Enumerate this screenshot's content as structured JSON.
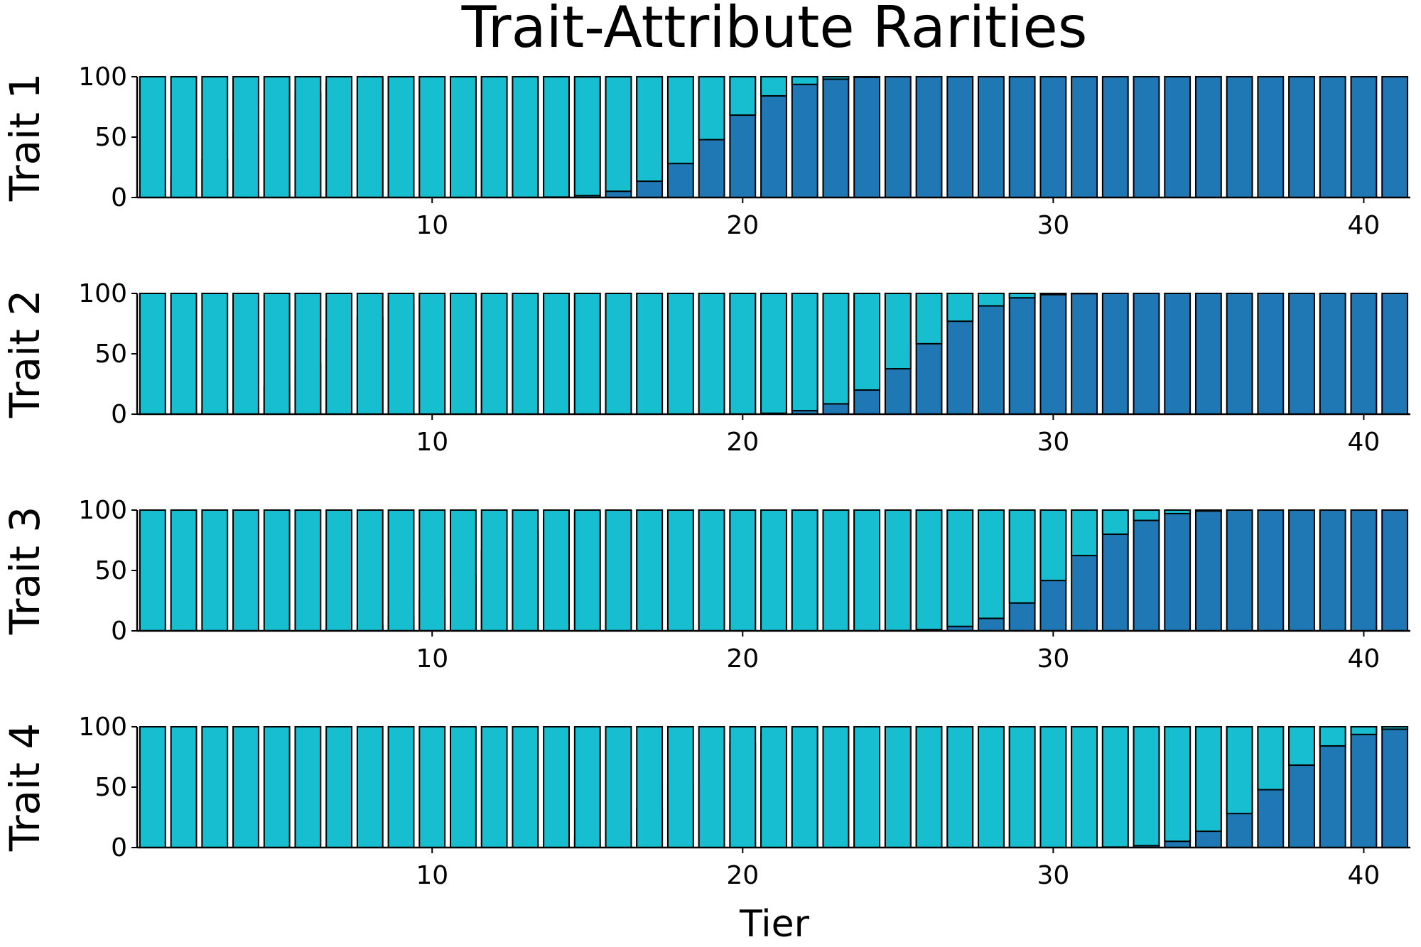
{
  "figure": {
    "title": "Trait-Attribute Rarities",
    "xlabel": "Tier"
  },
  "chart_data": [
    {
      "type": "bar",
      "stacked": true,
      "ylabel": "Trait 1",
      "x_ticks": [
        10,
        20,
        30,
        40
      ],
      "y_ticks": [
        0,
        50,
        100
      ],
      "xlim": [
        0.5,
        41.5
      ],
      "ylim": [
        0,
        100
      ],
      "grid": false,
      "center": 11.5,
      "spread": 1.9
    },
    {
      "type": "bar",
      "stacked": true,
      "ylabel": "Trait 2",
      "x_ticks": [
        10,
        20,
        30,
        40
      ],
      "y_ticks": [
        0,
        50,
        100
      ],
      "xlim": [
        0.5,
        41.5
      ],
      "ylim": [
        0,
        100
      ],
      "grid": false,
      "center": 16.0,
      "spread": 2.4
    },
    {
      "type": "bar",
      "stacked": true,
      "ylabel": "Trait 3",
      "x_ticks": [
        10,
        20,
        30,
        40
      ],
      "y_ticks": [
        0,
        50,
        100
      ],
      "xlim": [
        0.5,
        41.5
      ],
      "ylim": [
        0,
        100
      ],
      "grid": false,
      "center": 20.8,
      "spread": 2.4
    },
    {
      "type": "bar",
      "stacked": true,
      "ylabel": "Trait 4",
      "x_ticks": [
        10,
        20,
        30,
        40
      ],
      "y_ticks": [
        0,
        50,
        100
      ],
      "xlim": [
        0.5,
        41.5
      ],
      "ylim": [
        0,
        100
      ],
      "grid": false,
      "center": 27.5,
      "spread": 2.4
    }
  ],
  "series_colors": [
    "#1f77b4",
    "#ff7f0e",
    "#2ca02c",
    "#d62728",
    "#9467bd",
    "#8c564b",
    "#e377c2",
    "#7f7f7f",
    "#bcbd22",
    "#17becf"
  ]
}
